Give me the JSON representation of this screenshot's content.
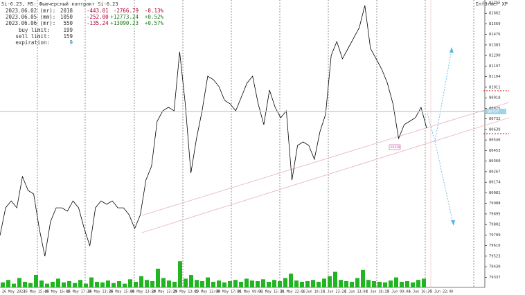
{
  "header": {
    "title": "Si-6.23, M5: Фьючерсный контракт Si-6.23",
    "informer": "Informer XP"
  },
  "stats": {
    "rows": [
      [
        "2023.06.02 (mr):",
        "2018",
        "-443.01",
        "-2766.79",
        "-0.13%"
      ],
      [
        "2023.06.05 (mm):",
        "1050",
        "-252.00",
        "+12773.24",
        "+0.52%"
      ],
      [
        "2023.06.06 (mr):",
        "550",
        "-135.24",
        "+13090.23",
        "+0.57%"
      ]
    ],
    "limits": [
      [
        "buy limit:",
        "199"
      ],
      [
        "sell limit:",
        "159"
      ],
      [
        "expiration:",
        "9"
      ]
    ]
  },
  "chart_data": {
    "type": "line",
    "ylim": [
      79248,
      81779
    ],
    "yticks": [
      81755,
      81662,
      81569,
      81476,
      81383,
      81290,
      81197,
      81104,
      81011,
      80918,
      80825,
      80732,
      80639,
      80546,
      80453,
      80360,
      80267,
      80174,
      80081,
      79988,
      79895,
      79802,
      79709,
      79616,
      79523,
      79430,
      79337
    ],
    "current_price": 80797,
    "current_price_label": "80797",
    "marker_label": "81430",
    "time_labels": [
      "26 May 2023",
      "26 May 15:40",
      "26 May 16:40",
      "26 May 17:30",
      "26 May 23:20",
      "26 May 15:00",
      "26 May 23:50",
      "29 May 13:20",
      "29 May 13:05",
      "29 May 13:00",
      "30 May 17:00",
      "31 May 09:06",
      "31 May 15:30",
      "31 May 22:00",
      "1 Jun 10:30",
      "1 Jun 23:20",
      "2 Jun 13:04",
      "2 Jun 18:10",
      "5 Jun 09:04",
      "5 Jun 16:30",
      "5 Jun 22:40"
    ],
    "series": [
      {
        "name": "Si-6.23",
        "color": "#000000",
        "values": [
          79705,
          79949,
          80010,
          79949,
          80224,
          80102,
          80071,
          79766,
          79522,
          79827,
          79949,
          79949,
          79919,
          80010,
          79949,
          79766,
          79614,
          79949,
          80010,
          79980,
          80010,
          79949,
          79949,
          79888,
          79766,
          79888,
          80193,
          80315,
          80712,
          80803,
          80834,
          80803,
          81322,
          80864,
          80254,
          80559,
          80803,
          81108,
          81078,
          81017,
          80895,
          80864,
          80803,
          80925,
          81047,
          81108,
          80864,
          80681,
          80986,
          80834,
          80742,
          80803,
          80193,
          80498,
          80529,
          80498,
          80376,
          80620,
          80773,
          81291,
          81413,
          81261,
          81352,
          81444,
          81535,
          81731,
          81352,
          81261,
          81169,
          81047,
          80864,
          80559,
          80681,
          80712,
          80742,
          80834,
          80651
        ]
      }
    ],
    "volume": [
      8,
      12,
      6,
      15,
      9,
      7,
      20,
      11,
      6,
      9,
      14,
      8,
      10,
      7,
      12,
      6,
      16,
      9,
      8,
      11,
      7,
      10,
      6,
      13,
      9,
      18,
      12,
      10,
      30,
      15,
      11,
      9,
      42,
      14,
      20,
      12,
      10,
      16,
      9,
      11,
      8,
      10,
      12,
      9,
      14,
      11,
      10,
      13,
      9,
      12,
      10,
      15,
      22,
      11,
      9,
      10,
      12,
      9,
      14,
      18,
      25,
      12,
      10,
      9,
      15,
      28,
      12,
      10,
      9,
      8,
      11,
      16,
      9,
      10,
      8,
      12,
      14
    ],
    "volume_ylim": [
      0,
      50
    ]
  }
}
